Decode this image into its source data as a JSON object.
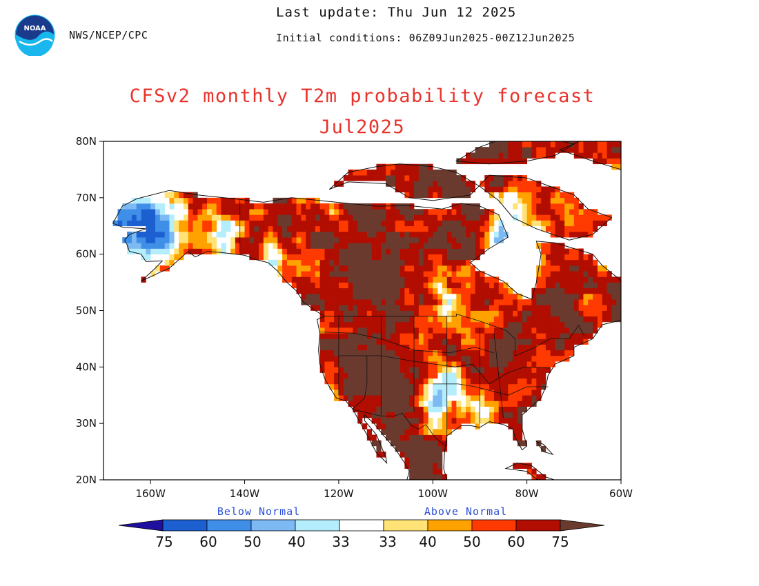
{
  "header": {
    "agency": "NWS/NCEP/CPC",
    "last_update": "Last update: Thu Jun 12 2025",
    "initial_conditions": "Initial conditions: 06Z09Jun2025-00Z12Jun2025",
    "logo_text": "NOAA"
  },
  "title": {
    "line1": "CFSv2 monthly T2m probability forecast",
    "line2": "Jul2025"
  },
  "axes": {
    "lat_ticks": [
      "80N",
      "70N",
      "60N",
      "50N",
      "40N",
      "30N",
      "20N"
    ],
    "lon_ticks": [
      "160W",
      "140W",
      "120W",
      "100W",
      "80W",
      "60W"
    ],
    "lat_range": [
      20,
      80
    ],
    "lon_range": [
      -170,
      -60
    ]
  },
  "legend": {
    "below_label": "Below Normal",
    "above_label": "Above Normal",
    "labels": [
      "75",
      "60",
      "50",
      "40",
      "33",
      "33",
      "40",
      "50",
      "60",
      "75"
    ],
    "colors": {
      "below_75": "#2010a0",
      "below_60": "#1c5fd1",
      "below_50": "#3f8fe8",
      "below_40": "#7db9f2",
      "below_33": "#b4eefc",
      "normal": "#ffffff",
      "above_33": "#ffe376",
      "above_40": "#ffa200",
      "above_50": "#ff3a00",
      "above_60": "#b10d00",
      "above_75": "#6b3a2e"
    }
  },
  "chart_data": {
    "type": "heatmap",
    "title": "CFSv2 monthly T2m probability forecast",
    "subtitle": "Jul2025",
    "x_range": [
      -170,
      -60
    ],
    "y_range": [
      20,
      80
    ],
    "regions": [
      {
        "name": "Alaska west",
        "category": "below_50"
      },
      {
        "name": "Alaska interior",
        "category": "below_33"
      },
      {
        "name": "Yukon",
        "category": "above_50"
      },
      {
        "name": "Canadian Prairies",
        "category": "above_60"
      },
      {
        "name": "Hudson Bay",
        "category": "normal"
      },
      {
        "name": "Quebec",
        "category": "above_50"
      },
      {
        "name": "US West",
        "category": "above_75"
      },
      {
        "name": "US Southwest",
        "category": "above_75"
      },
      {
        "name": "Mexico",
        "category": "above_75"
      },
      {
        "name": "US Central Plains",
        "category": "below_33"
      },
      {
        "name": "US Midwest",
        "category": "above_60"
      },
      {
        "name": "US Southeast",
        "category": "above_50"
      },
      {
        "name": "US Northeast",
        "category": "above_50"
      },
      {
        "name": "Canadian Arctic",
        "category": "above_60"
      }
    ]
  }
}
